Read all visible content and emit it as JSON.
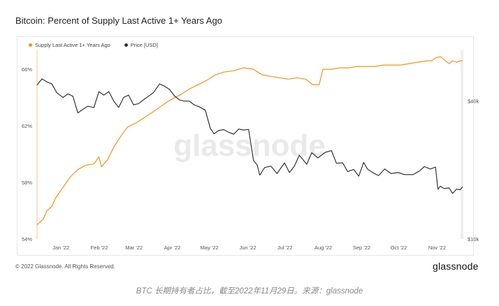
{
  "page": {
    "title": "Bitcoin: Percent of Supply Last Active 1+ Years Ago",
    "copyright": "© 2022 Glassnode. All Rights Reserved.",
    "brand": "glassnode",
    "watermark": "glassnode",
    "caption": "BTC 长期持有者占比，截至2022年11月29日。来源：glassnode"
  },
  "chart_data": {
    "type": "line",
    "title": "Bitcoin: Percent of Supply Last Active 1+ Years Ago",
    "legend_placement": "top-left",
    "grid": false,
    "x_ticks": [
      "Jan '22",
      "Feb '22",
      "Mar '22",
      "Apr '22",
      "May '22",
      "Jun '22",
      "Jul '22",
      "Aug '22",
      "Sep '22",
      "Oct '22",
      "Nov '22"
    ],
    "y_left": {
      "ticks": [
        "54%",
        "58%",
        "62%",
        "66%"
      ],
      "tick_values": [
        54,
        58,
        62,
        66
      ],
      "range": [
        54,
        66.6
      ]
    },
    "y_right": {
      "scale": "log",
      "ticks": [
        "$10k",
        "$40k"
      ],
      "tick_values": [
        10000,
        40000
      ],
      "range": [
        10000,
        60000
      ]
    },
    "series": [
      {
        "name": "Supply Last Active 1+ Years Ago",
        "axis": "left",
        "color": "#f7931a",
        "unit": "%",
        "points": [
          [
            "2021-12-20",
            55.0
          ],
          [
            "2021-12-25",
            55.4
          ],
          [
            "2021-12-28",
            56.0
          ],
          [
            "2022-01-01",
            56.3
          ],
          [
            "2022-01-04",
            56.9
          ],
          [
            "2022-01-08",
            57.4
          ],
          [
            "2022-01-12",
            57.9
          ],
          [
            "2022-01-16",
            58.4
          ],
          [
            "2022-01-22",
            58.9
          ],
          [
            "2022-01-28",
            59.2
          ],
          [
            "2022-02-04",
            59.3
          ],
          [
            "2022-02-08",
            59.8
          ],
          [
            "2022-02-10",
            59.1
          ],
          [
            "2022-02-15",
            59.6
          ],
          [
            "2022-02-20",
            60.5
          ],
          [
            "2022-02-26",
            61.3
          ],
          [
            "2022-03-03",
            61.9
          ],
          [
            "2022-03-10",
            62.2
          ],
          [
            "2022-03-17",
            62.6
          ],
          [
            "2022-03-24",
            63.0
          ],
          [
            "2022-04-01",
            63.5
          ],
          [
            "2022-04-08",
            63.9
          ],
          [
            "2022-04-15",
            64.2
          ],
          [
            "2022-04-22",
            64.6
          ],
          [
            "2022-04-29",
            64.9
          ],
          [
            "2022-05-06",
            65.2
          ],
          [
            "2022-05-13",
            65.6
          ],
          [
            "2022-05-20",
            65.8
          ],
          [
            "2022-05-28",
            65.9
          ],
          [
            "2022-06-05",
            66.1
          ],
          [
            "2022-06-13",
            66.0
          ],
          [
            "2022-06-20",
            65.6
          ],
          [
            "2022-06-27",
            65.5
          ],
          [
            "2022-07-04",
            65.4
          ],
          [
            "2022-07-11",
            65.3
          ],
          [
            "2022-07-18",
            65.4
          ],
          [
            "2022-07-25",
            65.3
          ],
          [
            "2022-07-31",
            64.9
          ],
          [
            "2022-08-05",
            64.9
          ],
          [
            "2022-08-08",
            66.0
          ],
          [
            "2022-08-15",
            66.0
          ],
          [
            "2022-08-22",
            66.1
          ],
          [
            "2022-08-29",
            66.1
          ],
          [
            "2022-09-05",
            66.2
          ],
          [
            "2022-09-12",
            66.2
          ],
          [
            "2022-09-19",
            66.2
          ],
          [
            "2022-09-26",
            66.3
          ],
          [
            "2022-10-03",
            66.3
          ],
          [
            "2022-10-10",
            66.3
          ],
          [
            "2022-10-17",
            66.4
          ],
          [
            "2022-10-24",
            66.5
          ],
          [
            "2022-10-31",
            66.6
          ],
          [
            "2022-11-04",
            66.6
          ],
          [
            "2022-11-07",
            66.8
          ],
          [
            "2022-11-11",
            66.9
          ],
          [
            "2022-11-15",
            66.6
          ],
          [
            "2022-11-18",
            66.4
          ],
          [
            "2022-11-21",
            66.6
          ],
          [
            "2022-11-24",
            66.5
          ],
          [
            "2022-11-27",
            66.6
          ],
          [
            "2022-11-29",
            66.6
          ]
        ]
      },
      {
        "name": "Price [USD]",
        "axis": "right",
        "color": "#333333",
        "unit": "USD",
        "points": [
          [
            "2021-12-20",
            47000
          ],
          [
            "2021-12-24",
            50000
          ],
          [
            "2021-12-28",
            48500
          ],
          [
            "2022-01-01",
            47500
          ],
          [
            "2022-01-05",
            43500
          ],
          [
            "2022-01-10",
            41500
          ],
          [
            "2022-01-14",
            43000
          ],
          [
            "2022-01-18",
            42000
          ],
          [
            "2022-01-22",
            35500
          ],
          [
            "2022-01-26",
            36800
          ],
          [
            "2022-01-30",
            38000
          ],
          [
            "2022-02-04",
            37500
          ],
          [
            "2022-02-08",
            44000
          ],
          [
            "2022-02-12",
            42500
          ],
          [
            "2022-02-16",
            44000
          ],
          [
            "2022-02-20",
            40000
          ],
          [
            "2022-02-24",
            37500
          ],
          [
            "2022-02-28",
            41500
          ],
          [
            "2022-03-04",
            42500
          ],
          [
            "2022-03-08",
            38500
          ],
          [
            "2022-03-12",
            39000
          ],
          [
            "2022-03-16",
            40500
          ],
          [
            "2022-03-20",
            42000
          ],
          [
            "2022-03-24",
            43500
          ],
          [
            "2022-03-29",
            47500
          ],
          [
            "2022-04-02",
            46500
          ],
          [
            "2022-04-06",
            45000
          ],
          [
            "2022-04-10",
            42200
          ],
          [
            "2022-04-14",
            40500
          ],
          [
            "2022-04-18",
            40000
          ],
          [
            "2022-04-22",
            40000
          ],
          [
            "2022-04-26",
            38500
          ],
          [
            "2022-04-30",
            37800
          ],
          [
            "2022-05-05",
            36500
          ],
          [
            "2022-05-09",
            30500
          ],
          [
            "2022-05-12",
            28800
          ],
          [
            "2022-05-16",
            29800
          ],
          [
            "2022-05-20",
            30000
          ],
          [
            "2022-05-24",
            29200
          ],
          [
            "2022-05-28",
            28700
          ],
          [
            "2022-06-01",
            30200
          ],
          [
            "2022-06-05",
            29900
          ],
          [
            "2022-06-09",
            30100
          ],
          [
            "2022-06-13",
            22000
          ],
          [
            "2022-06-16",
            21000
          ],
          [
            "2022-06-18",
            19000
          ],
          [
            "2022-06-22",
            20500
          ],
          [
            "2022-06-27",
            20800
          ],
          [
            "2022-07-02",
            19300
          ],
          [
            "2022-07-08",
            21500
          ],
          [
            "2022-07-12",
            19500
          ],
          [
            "2022-07-16",
            20800
          ],
          [
            "2022-07-20",
            23200
          ],
          [
            "2022-07-26",
            21200
          ],
          [
            "2022-07-30",
            23800
          ],
          [
            "2022-08-04",
            22600
          ],
          [
            "2022-08-10",
            23900
          ],
          [
            "2022-08-15",
            24300
          ],
          [
            "2022-08-19",
            21400
          ],
          [
            "2022-08-24",
            21500
          ],
          [
            "2022-08-28",
            19700
          ],
          [
            "2022-09-02",
            20100
          ],
          [
            "2022-09-06",
            18800
          ],
          [
            "2022-09-10",
            21600
          ],
          [
            "2022-09-13",
            20200
          ],
          [
            "2022-09-18",
            19400
          ],
          [
            "2022-09-22",
            18900
          ],
          [
            "2022-09-27",
            20200
          ],
          [
            "2022-10-02",
            19300
          ],
          [
            "2022-10-08",
            19500
          ],
          [
            "2022-10-13",
            19100
          ],
          [
            "2022-10-20",
            19100
          ],
          [
            "2022-10-25",
            19800
          ],
          [
            "2022-10-29",
            20700
          ],
          [
            "2022-11-03",
            20200
          ],
          [
            "2022-11-07",
            20600
          ],
          [
            "2022-11-09",
            16500
          ],
          [
            "2022-11-11",
            17000
          ],
          [
            "2022-11-14",
            16600
          ],
          [
            "2022-11-18",
            16700
          ],
          [
            "2022-11-21",
            15800
          ],
          [
            "2022-11-24",
            16500
          ],
          [
            "2022-11-27",
            16400
          ],
          [
            "2022-11-29",
            16900
          ]
        ]
      }
    ]
  }
}
